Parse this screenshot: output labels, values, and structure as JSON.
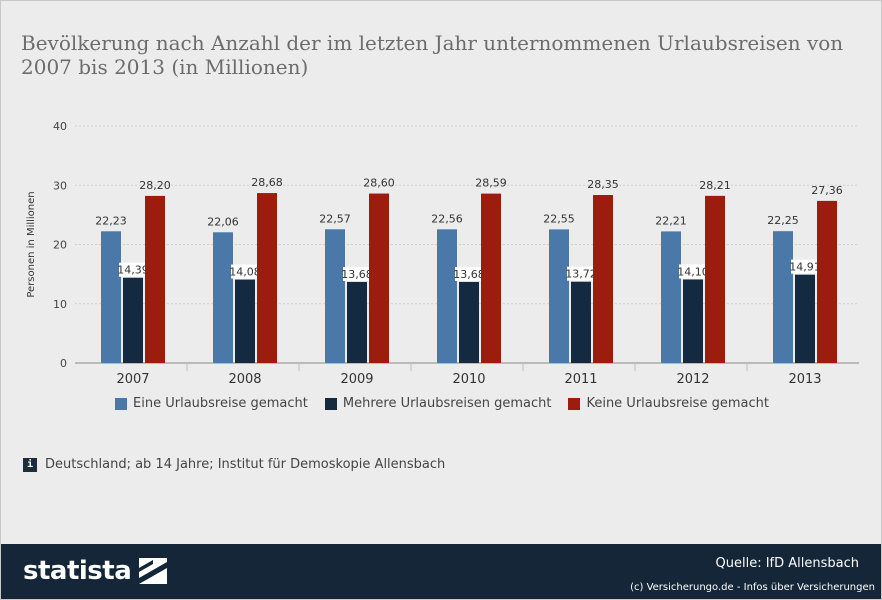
{
  "header": {
    "title_line1": "Bevölkerung nach Anzahl der im letzten Jahr unternommenen Urlaubsreisen von",
    "title_line2": "2007 bis 2013 (in Millionen)"
  },
  "note": {
    "text": "Deutschland; ab 14 Jahre; Institut für Demoskopie Allensbach",
    "icon": "info-icon"
  },
  "footer": {
    "logo_text": "statista",
    "logo_icon": "statista-logo-icon",
    "source": "Quelle: IfD Allensbach",
    "copyright": "(c) Versicherungo.de - Infos über Versicherungen"
  },
  "chart_data": {
    "type": "bar",
    "title": "Bevölkerung nach Anzahl der im letzten Jahr unternommenen Urlaubsreisen von 2007 bis 2013 (in Millionen)",
    "xlabel": "",
    "ylabel": "Personen in Millionen",
    "ylim": [
      0,
      40
    ],
    "yticks": [
      0,
      10,
      20,
      30,
      40
    ],
    "grid": true,
    "legend_position": "bottom",
    "categories": [
      "2007",
      "2008",
      "2009",
      "2010",
      "2011",
      "2012",
      "2013"
    ],
    "series": [
      {
        "name": "Eine Urlaubsreise gemacht",
        "color": "#4a78a8",
        "values": [
          22.23,
          22.06,
          22.57,
          22.56,
          22.55,
          22.21,
          22.25
        ],
        "labels": [
          "22,23",
          "22,06",
          "22,57",
          "22,56",
          "22,55",
          "22,21",
          "22,25"
        ]
      },
      {
        "name": "Mehrere Urlaubsreisen gemacht",
        "color": "#142a40",
        "values": [
          14.39,
          14.08,
          13.68,
          13.68,
          13.72,
          14.1,
          14.91
        ],
        "labels": [
          "14,39",
          "14,08",
          "13,68",
          "13,68",
          "13,72",
          "14,10",
          "14,91"
        ]
      },
      {
        "name": "Keine Urlaubsreise gemacht",
        "color": "#9d1c0d",
        "values": [
          28.2,
          28.68,
          28.6,
          28.59,
          28.35,
          28.21,
          27.36
        ],
        "labels": [
          "28,20",
          "28,68",
          "28,60",
          "28,59",
          "28,35",
          "28,21",
          "27,36"
        ]
      }
    ]
  }
}
